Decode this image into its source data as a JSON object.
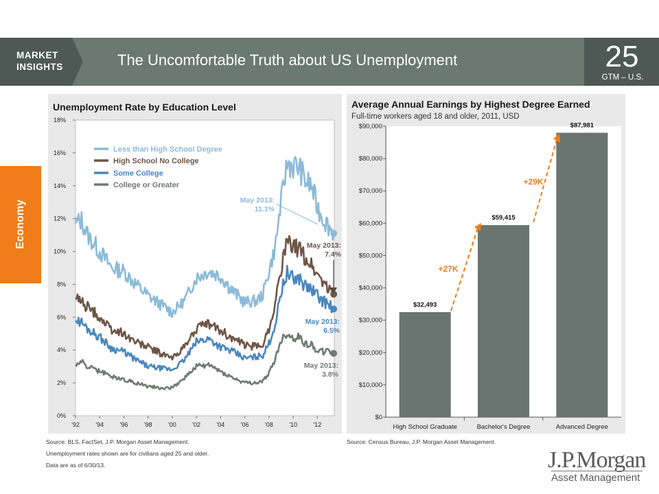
{
  "header": {
    "brand_line1": "MARKET",
    "brand_line2": "INSIGHTS",
    "title": "The Uncomfortable Truth about US Unemployment",
    "page_number": "25",
    "page_tag": "GTM – U.S."
  },
  "side_tab": {
    "label": "Economy"
  },
  "colors": {
    "accent": "#f07d1a",
    "header_bg": "#6a7972",
    "header_dark": "#4e5955",
    "panel_bg": "#e9e9e9",
    "bar_fill": "#6a7470"
  },
  "left_chart": {
    "title": "Unemployment Rate by Education Level",
    "legend": [
      {
        "label": "Less than High School Degree",
        "color": "#8dbad8"
      },
      {
        "label": "High School No College",
        "color": "#6e5548"
      },
      {
        "label": "Some College",
        "color": "#4a86bf"
      },
      {
        "label": "College or Greater",
        "color": "#6e7a74"
      }
    ],
    "annotations": [
      {
        "line1": "May 2013:",
        "line2": "11.1%",
        "color": "#8dbad8"
      },
      {
        "line1": "May 2013:",
        "line2": "7.4%",
        "color": "#6e5548"
      },
      {
        "line1": "May 2013:",
        "line2": "6.5%",
        "color": "#4a86bf"
      },
      {
        "line1": "May 2013:",
        "line2": "3.8%",
        "color": "#6e7a74"
      }
    ],
    "sources": [
      "Source: BLS, FactSet, J.P. Morgan Asset Management.",
      "Unemployment rates shown are for civilians aged 25 and older.",
      "Data are as of 6/30/13."
    ]
  },
  "right_chart": {
    "title": "Average Annual Earnings by Highest Degree Earned",
    "subtitle": "Full-time workers aged 18 and older, 2011, USD",
    "deltas": [
      "+27K",
      "+29K"
    ],
    "source": "Source: Census Bureau, J.P. Morgan Asset Management."
  },
  "logo": {
    "main": "J.P.Morgan",
    "sub": "Asset Management"
  },
  "chart_data": [
    {
      "type": "line",
      "title": "Unemployment Rate by Education Level",
      "x_range": [
        1992,
        2013.4
      ],
      "ylim": [
        0,
        18
      ],
      "y_ticks": [
        "0%",
        "2%",
        "4%",
        "6%",
        "8%",
        "10%",
        "12%",
        "14%",
        "16%",
        "18%"
      ],
      "x_ticks": [
        {
          "x": 1992,
          "label": "'92"
        },
        {
          "x": 1994,
          "label": "'94"
        },
        {
          "x": 1996,
          "label": "'96"
        },
        {
          "x": 1998,
          "label": "'98"
        },
        {
          "x": 2000,
          "label": "'00"
        },
        {
          "x": 2002,
          "label": "'02"
        },
        {
          "x": 2004,
          "label": "'04"
        },
        {
          "x": 2006,
          "label": "'06"
        },
        {
          "x": 2008,
          "label": "'08"
        },
        {
          "x": 2010,
          "label": "'10"
        },
        {
          "x": 2012,
          "label": "'12"
        }
      ],
      "series": [
        {
          "name": "Less than High School Degree",
          "color": "#8dbad8",
          "x": [
            1992,
            1992.5,
            1993,
            1994,
            1995,
            1996,
            1997,
            1998,
            1999,
            2000,
            2001,
            2002,
            2003,
            2004,
            2005,
            2006,
            2007,
            2007.5,
            2008,
            2008.5,
            2009,
            2009.5,
            2010,
            2010.5,
            2011,
            2011.5,
            2012,
            2012.5,
            2013,
            2013.35
          ],
          "y": [
            11.7,
            11.9,
            11.0,
            10.0,
            9.0,
            8.8,
            8.0,
            7.3,
            6.8,
            6.3,
            7.0,
            8.4,
            8.8,
            8.5,
            7.6,
            6.9,
            7.0,
            7.4,
            8.8,
            10.2,
            13.0,
            15.4,
            15.2,
            15.1,
            14.3,
            14.0,
            12.7,
            12.0,
            11.5,
            11.1
          ]
        },
        {
          "name": "High School No College",
          "color": "#6e5548",
          "x": [
            1992,
            1992.5,
            1993,
            1994,
            1995,
            1996,
            1997,
            1998,
            1999,
            2000,
            2001,
            2002,
            2003,
            2004,
            2005,
            2006,
            2007,
            2007.5,
            2008,
            2008.5,
            2009,
            2009.5,
            2010,
            2010.5,
            2011,
            2011.5,
            2012,
            2012.5,
            2013,
            2013.35
          ],
          "y": [
            7.1,
            7.0,
            6.6,
            6.0,
            5.2,
            5.0,
            4.5,
            4.2,
            3.8,
            3.5,
            4.2,
            5.3,
            5.6,
            5.2,
            4.7,
            4.3,
            4.2,
            4.4,
            5.3,
            6.8,
            9.0,
            10.6,
            10.2,
            10.2,
            9.6,
            9.2,
            8.6,
            8.2,
            7.6,
            7.4
          ]
        },
        {
          "name": "Some College",
          "color": "#4a86bf",
          "x": [
            1992,
            1992.5,
            1993,
            1994,
            1995,
            1996,
            1997,
            1998,
            1999,
            2000,
            2001,
            2002,
            2003,
            2004,
            2005,
            2006,
            2007,
            2007.5,
            2008,
            2008.5,
            2009,
            2009.5,
            2010,
            2010.5,
            2011,
            2011.5,
            2012,
            2012.5,
            2013,
            2013.35
          ],
          "y": [
            5.8,
            5.7,
            5.3,
            4.8,
            4.1,
            3.9,
            3.4,
            3.0,
            2.9,
            2.8,
            3.4,
            4.5,
            4.7,
            4.2,
            3.9,
            3.5,
            3.6,
            3.7,
            4.4,
            5.5,
            7.6,
            8.7,
            8.3,
            8.4,
            7.9,
            7.7,
            7.3,
            7.0,
            6.7,
            6.5
          ]
        },
        {
          "name": "College or Greater",
          "color": "#6e7a74",
          "x": [
            1992,
            1992.5,
            1993,
            1994,
            1995,
            1996,
            1997,
            1998,
            1999,
            2000,
            2001,
            2002,
            2003,
            2004,
            2005,
            2006,
            2007,
            2007.5,
            2008,
            2008.5,
            2009,
            2009.5,
            2010,
            2010.5,
            2011,
            2011.5,
            2012,
            2012.5,
            2013,
            2013.35
          ],
          "y": [
            3.1,
            3.3,
            3.0,
            2.7,
            2.4,
            2.2,
            2.0,
            1.8,
            1.7,
            1.7,
            2.3,
            3.0,
            3.1,
            2.7,
            2.3,
            2.0,
            2.0,
            2.1,
            2.6,
            3.4,
            4.6,
            5.0,
            4.7,
            4.8,
            4.4,
            4.3,
            4.0,
            3.9,
            3.9,
            3.8
          ]
        }
      ]
    },
    {
      "type": "bar",
      "title": "Average Annual Earnings by Highest Degree Earned",
      "subtitle": "Full-time workers aged 18 and older, 2011, USD",
      "categories": [
        "High School Graduate",
        "Bachelor's Degree",
        "Advanced Degree"
      ],
      "values": [
        32493,
        59415,
        87981
      ],
      "value_labels": [
        "$32,493",
        "$59,415",
        "$87,981"
      ],
      "ylim": [
        0,
        90000
      ],
      "y_ticks": [
        "$0",
        "$10,000",
        "$20,000",
        "$30,000",
        "$40,000",
        "$50,000",
        "$60,000",
        "$70,000",
        "$80,000",
        "$90,000"
      ]
    }
  ]
}
